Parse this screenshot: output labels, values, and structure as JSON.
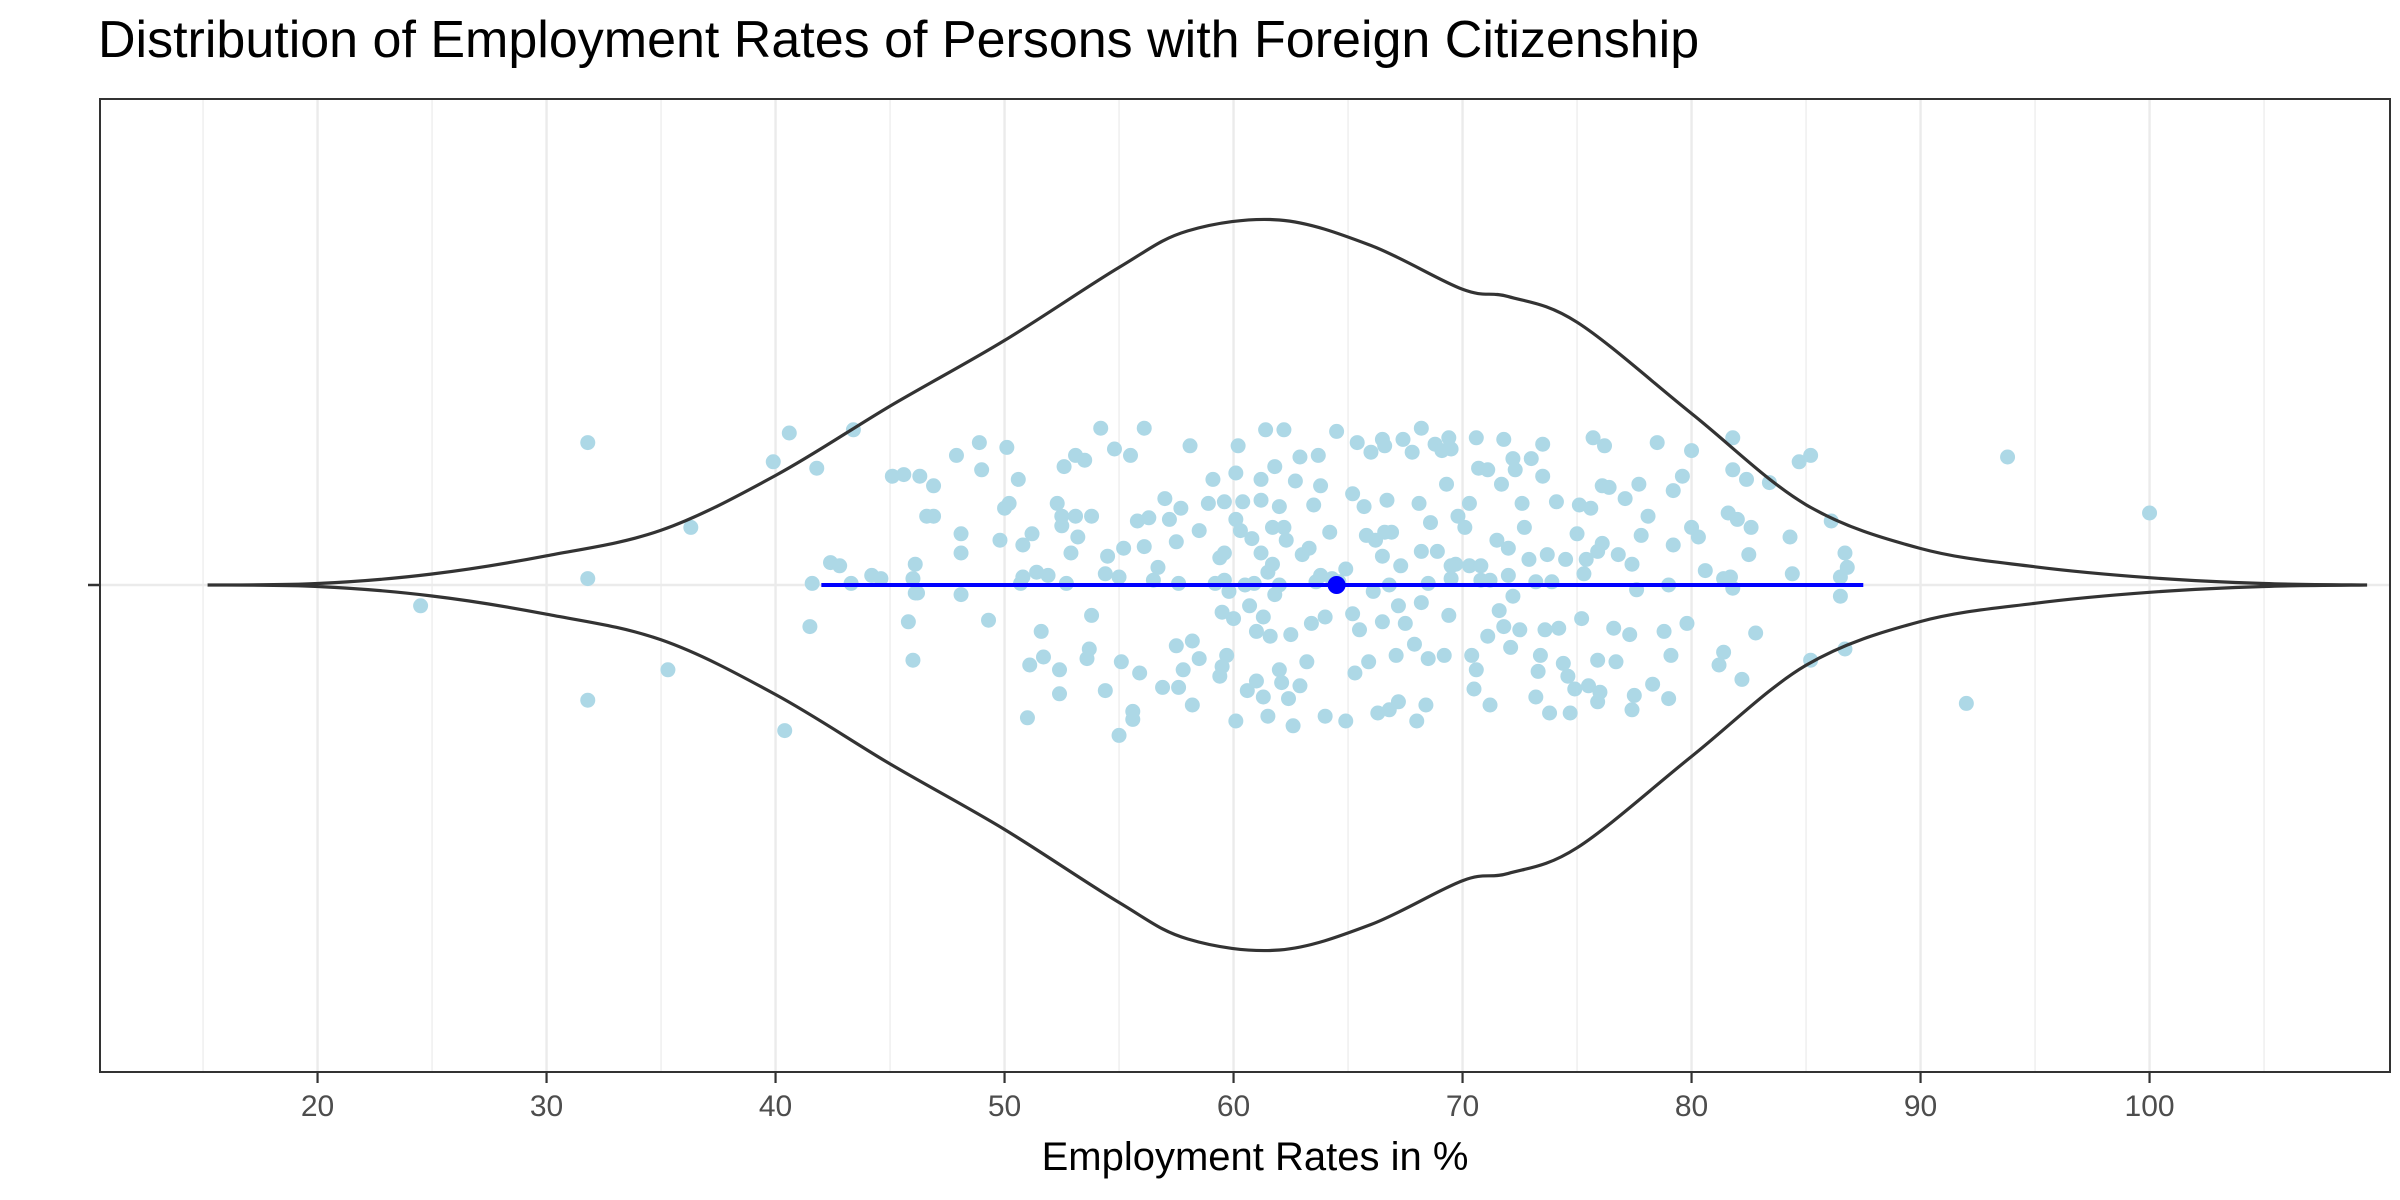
{
  "chart_data": {
    "type": "violin",
    "title": "Distribution of Employment Rates of Persons with Foreign Citizenship",
    "xlabel": "Employment Rates in %",
    "ylabel": "",
    "xlim": [
      10.5,
      110.5
    ],
    "x_ticks": [
      20,
      30,
      40,
      50,
      60,
      70,
      80,
      90,
      100
    ],
    "grid": true,
    "colors": {
      "points": "#add8e6",
      "violin": "#333333",
      "summary": "#0000ff",
      "grid_major": "#ebebeb",
      "panel_border": "#333333"
    },
    "violin_density": {
      "x": [
        15.2,
        20,
        25,
        30,
        35,
        40,
        45,
        50,
        55,
        58,
        62,
        66,
        70,
        72,
        75,
        80,
        85,
        90,
        95,
        100,
        105,
        109.5
      ],
      "half_width": [
        0,
        0.004,
        0.03,
        0.08,
        0.15,
        0.3,
        0.49,
        0.67,
        0.87,
        0.97,
        1.0,
        0.93,
        0.81,
        0.79,
        0.72,
        0.47,
        0.22,
        0.1,
        0.05,
        0.02,
        0.004,
        0
      ]
    },
    "summary": {
      "mean": 64.5,
      "lower": 42,
      "upper": 87.5
    },
    "points": [
      [
        24.5,
        -0.13
      ],
      [
        31.8,
        0.89
      ],
      [
        31.8,
        0.04
      ],
      [
        31.8,
        -0.72
      ],
      [
        35.3,
        -0.53
      ],
      [
        36.3,
        0.36
      ],
      [
        39.9,
        0.77
      ],
      [
        40.4,
        -0.91
      ],
      [
        40.6,
        0.95
      ],
      [
        41.5,
        -0.26
      ],
      [
        41.6,
        0.01
      ],
      [
        41.8,
        0.73
      ],
      [
        42.4,
        0.14
      ],
      [
        42.8,
        0.12
      ],
      [
        43.3,
        0.01
      ],
      [
        43.4,
        0.97
      ],
      [
        44.2,
        0.06
      ],
      [
        44.6,
        0.04
      ],
      [
        45.1,
        0.68
      ],
      [
        45.6,
        0.69
      ],
      [
        45.8,
        -0.23
      ],
      [
        46.0,
        -0.47
      ],
      [
        46.0,
        0.04
      ],
      [
        46.1,
        0.13
      ],
      [
        46.1,
        -0.05
      ],
      [
        46.2,
        -0.05
      ],
      [
        46.3,
        0.68
      ],
      [
        46.6,
        0.43
      ],
      [
        46.9,
        0.43
      ],
      [
        46.9,
        0.62
      ],
      [
        47.9,
        0.81
      ],
      [
        48.1,
        0.32
      ],
      [
        48.1,
        -0.06
      ],
      [
        48.1,
        0.2
      ],
      [
        48.9,
        0.89
      ],
      [
        49.0,
        0.72
      ],
      [
        49.3,
        -0.22
      ],
      [
        49.8,
        0.28
      ],
      [
        50.0,
        0.48
      ],
      [
        50.1,
        0.86
      ],
      [
        50.2,
        0.51
      ],
      [
        50.6,
        0.66
      ],
      [
        50.7,
        0.01
      ],
      [
        50.8,
        0.05
      ],
      [
        50.8,
        0.25
      ],
      [
        51.0,
        -0.83
      ],
      [
        51.1,
        -0.5
      ],
      [
        51.2,
        0.32
      ],
      [
        51.4,
        0.08
      ],
      [
        51.6,
        -0.29
      ],
      [
        51.7,
        -0.45
      ],
      [
        51.9,
        0.06
      ],
      [
        52.3,
        0.51
      ],
      [
        52.4,
        -0.68
      ],
      [
        52.4,
        -0.53
      ],
      [
        52.5,
        0.37
      ],
      [
        52.5,
        0.43
      ],
      [
        52.6,
        0.74
      ],
      [
        52.7,
        0.01
      ],
      [
        52.9,
        0.2
      ],
      [
        53.1,
        0.81
      ],
      [
        53.1,
        0.43
      ],
      [
        53.2,
        0.3
      ],
      [
        53.5,
        0.78
      ],
      [
        53.6,
        -0.46
      ],
      [
        53.7,
        -0.4
      ],
      [
        53.8,
        0.43
      ],
      [
        53.8,
        -0.19
      ],
      [
        54.2,
        0.98
      ],
      [
        54.4,
        0.07
      ],
      [
        54.4,
        -0.66
      ],
      [
        54.5,
        0.18
      ],
      [
        54.8,
        0.85
      ],
      [
        55.0,
        0.05
      ],
      [
        55.0,
        -0.94
      ],
      [
        55.1,
        -0.48
      ],
      [
        55.2,
        0.23
      ],
      [
        55.5,
        0.81
      ],
      [
        55.6,
        -0.84
      ],
      [
        55.6,
        -0.79
      ],
      [
        55.8,
        0.4
      ],
      [
        55.9,
        -0.55
      ],
      [
        56.1,
        0.24
      ],
      [
        56.1,
        0.98
      ],
      [
        56.3,
        0.42
      ],
      [
        56.5,
        0.03
      ],
      [
        56.7,
        0.11
      ],
      [
        56.9,
        -0.64
      ],
      [
        57.0,
        0.54
      ],
      [
        57.2,
        0.41
      ],
      [
        57.5,
        -0.38
      ],
      [
        57.5,
        0.27
      ],
      [
        57.6,
        -0.64
      ],
      [
        57.6,
        0.01
      ],
      [
        57.7,
        0.48
      ],
      [
        57.8,
        -0.53
      ],
      [
        58.1,
        0.87
      ],
      [
        58.2,
        -0.75
      ],
      [
        58.2,
        -0.35
      ],
      [
        58.5,
        0.34
      ],
      [
        58.5,
        -0.46
      ],
      [
        58.9,
        0.51
      ],
      [
        59.1,
        0.66
      ],
      [
        59.2,
        0.01
      ],
      [
        59.4,
        -0.57
      ],
      [
        59.4,
        0.17
      ],
      [
        59.5,
        -0.17
      ],
      [
        59.5,
        -0.51
      ],
      [
        59.6,
        0.52
      ],
      [
        59.6,
        0.2
      ],
      [
        59.6,
        0.03
      ],
      [
        59.7,
        -0.44
      ],
      [
        59.8,
        -0.04
      ],
      [
        60.0,
        -0.21
      ],
      [
        60.1,
        0.41
      ],
      [
        60.1,
        0.7
      ],
      [
        60.1,
        -0.85
      ],
      [
        60.2,
        0.87
      ],
      [
        60.3,
        0.34
      ],
      [
        60.4,
        0.52
      ],
      [
        60.5,
        0.0
      ],
      [
        60.6,
        -0.66
      ],
      [
        60.7,
        -0.13
      ],
      [
        60.8,
        0.29
      ],
      [
        60.9,
        0.01
      ],
      [
        61.0,
        -0.6
      ],
      [
        61.0,
        -0.29
      ],
      [
        61.2,
        0.66
      ],
      [
        61.2,
        0.53
      ],
      [
        61.2,
        0.2
      ],
      [
        61.3,
        -0.2
      ],
      [
        61.3,
        -0.7
      ],
      [
        61.4,
        0.97
      ],
      [
        61.5,
        -0.82
      ],
      [
        61.5,
        0.08
      ],
      [
        61.6,
        -0.32
      ],
      [
        61.7,
        0.13
      ],
      [
        61.7,
        0.36
      ],
      [
        61.8,
        0.74
      ],
      [
        61.8,
        -0.06
      ],
      [
        62.0,
        0.0
      ],
      [
        62.0,
        0.49
      ],
      [
        62.0,
        -0.53
      ],
      [
        62.1,
        -0.61
      ],
      [
        62.2,
        0.97
      ],
      [
        62.2,
        0.36
      ],
      [
        62.3,
        0.28
      ],
      [
        62.4,
        -0.71
      ],
      [
        62.5,
        -0.31
      ],
      [
        62.6,
        -0.88
      ],
      [
        62.7,
        0.65
      ],
      [
        62.9,
        0.8
      ],
      [
        62.9,
        -0.63
      ],
      [
        63.0,
        0.19
      ],
      [
        63.2,
        -0.48
      ],
      [
        63.3,
        0.23
      ],
      [
        63.4,
        -0.24
      ],
      [
        63.5,
        0.5
      ],
      [
        63.6,
        0.02
      ],
      [
        63.7,
        0.81
      ],
      [
        63.8,
        0.06
      ],
      [
        63.8,
        0.62
      ],
      [
        64.0,
        -0.2
      ],
      [
        64.0,
        -0.82
      ],
      [
        64.2,
        0.33
      ],
      [
        64.3,
        0.04
      ],
      [
        64.5,
        0.96
      ],
      [
        64.6,
        0.02
      ],
      [
        64.9,
        0.1
      ],
      [
        64.9,
        -0.85
      ],
      [
        65.2,
        -0.18
      ],
      [
        65.2,
        0.57
      ],
      [
        65.3,
        -0.55
      ],
      [
        65.4,
        0.89
      ],
      [
        65.5,
        -0.28
      ],
      [
        65.7,
        0.49
      ],
      [
        65.8,
        0.31
      ],
      [
        65.9,
        -0.48
      ],
      [
        66.0,
        0.83
      ],
      [
        66.1,
        -0.04
      ],
      [
        66.2,
        0.28
      ],
      [
        66.3,
        -0.8
      ],
      [
        66.5,
        -0.23
      ],
      [
        66.5,
        0.18
      ],
      [
        66.5,
        0.91
      ],
      [
        66.6,
        0.33
      ],
      [
        66.6,
        0.87
      ],
      [
        66.7,
        0.53
      ],
      [
        66.8,
        -0.78
      ],
      [
        66.8,
        0.0
      ],
      [
        66.9,
        0.33
      ],
      [
        67.1,
        -0.44
      ],
      [
        67.2,
        -0.73
      ],
      [
        67.2,
        -0.13
      ],
      [
        67.3,
        0.12
      ],
      [
        67.4,
        0.91
      ],
      [
        67.5,
        -0.24
      ],
      [
        67.8,
        0.83
      ],
      [
        67.9,
        -0.37
      ],
      [
        68.0,
        -0.85
      ],
      [
        68.1,
        0.51
      ],
      [
        68.2,
        0.98
      ],
      [
        68.2,
        -0.11
      ],
      [
        68.2,
        0.21
      ],
      [
        68.4,
        -0.75
      ],
      [
        68.5,
        0.01
      ],
      [
        68.5,
        -0.46
      ],
      [
        68.6,
        0.39
      ],
      [
        68.8,
        0.88
      ],
      [
        68.9,
        0.21
      ],
      [
        69.1,
        0.84
      ],
      [
        69.2,
        -0.44
      ],
      [
        69.3,
        0.63
      ],
      [
        69.4,
        -0.19
      ],
      [
        69.4,
        0.92
      ],
      [
        69.5,
        0.12
      ],
      [
        69.5,
        0.85
      ],
      [
        69.5,
        0.04
      ],
      [
        69.7,
        0.13
      ],
      [
        69.8,
        0.43
      ],
      [
        70.1,
        0.36
      ],
      [
        70.3,
        0.12
      ],
      [
        70.3,
        0.51
      ],
      [
        70.4,
        -0.44
      ],
      [
        70.5,
        -0.65
      ],
      [
        70.6,
        -0.53
      ],
      [
        70.6,
        0.92
      ],
      [
        70.7,
        0.73
      ],
      [
        70.8,
        0.12
      ],
      [
        70.8,
        0.03
      ],
      [
        71.1,
        0.72
      ],
      [
        71.1,
        -0.32
      ],
      [
        71.2,
        -0.75
      ],
      [
        71.2,
        0.03
      ],
      [
        71.5,
        0.28
      ],
      [
        71.6,
        -0.16
      ],
      [
        71.7,
        0.63
      ],
      [
        71.8,
        -0.26
      ],
      [
        71.8,
        0.91
      ],
      [
        72.0,
        0.06
      ],
      [
        72.0,
        0.23
      ],
      [
        72.1,
        -0.39
      ],
      [
        72.2,
        -0.07
      ],
      [
        72.2,
        0.79
      ],
      [
        72.3,
        0.72
      ],
      [
        72.5,
        -0.28
      ],
      [
        72.6,
        0.51
      ],
      [
        72.7,
        0.36
      ],
      [
        72.9,
        0.16
      ],
      [
        73.0,
        0.79
      ],
      [
        73.2,
        0.02
      ],
      [
        73.2,
        -0.7
      ],
      [
        73.3,
        -0.54
      ],
      [
        73.4,
        -0.44
      ],
      [
        73.5,
        0.68
      ],
      [
        73.5,
        0.88
      ],
      [
        73.6,
        -0.28
      ],
      [
        73.7,
        0.19
      ],
      [
        73.8,
        -0.8
      ],
      [
        73.9,
        0.02
      ],
      [
        74.1,
        0.52
      ],
      [
        74.2,
        -0.27
      ],
      [
        74.4,
        -0.49
      ],
      [
        74.5,
        0.16
      ],
      [
        74.6,
        -0.57
      ],
      [
        74.7,
        -0.8
      ],
      [
        74.9,
        -0.65
      ],
      [
        75.0,
        0.32
      ],
      [
        75.1,
        0.5
      ],
      [
        75.2,
        -0.21
      ],
      [
        75.3,
        0.07
      ],
      [
        75.4,
        0.16
      ],
      [
        75.5,
        -0.63
      ],
      [
        75.6,
        0.48
      ],
      [
        75.7,
        0.92
      ],
      [
        75.9,
        0.21
      ],
      [
        75.9,
        -0.47
      ],
      [
        75.9,
        -0.73
      ],
      [
        76.0,
        -0.67
      ],
      [
        76.1,
        0.62
      ],
      [
        76.1,
        0.26
      ],
      [
        76.2,
        0.87
      ],
      [
        76.4,
        0.61
      ],
      [
        76.6,
        -0.27
      ],
      [
        76.7,
        -0.48
      ],
      [
        76.8,
        0.19
      ],
      [
        77.1,
        0.54
      ],
      [
        77.3,
        -0.31
      ],
      [
        77.4,
        -0.78
      ],
      [
        77.4,
        0.13
      ],
      [
        77.5,
        -0.69
      ],
      [
        77.6,
        -0.03
      ],
      [
        77.7,
        0.63
      ],
      [
        77.8,
        0.31
      ],
      [
        78.1,
        0.43
      ],
      [
        78.3,
        -0.62
      ],
      [
        78.5,
        0.89
      ],
      [
        78.8,
        -0.29
      ],
      [
        79.0,
        0.0
      ],
      [
        79.0,
        -0.71
      ],
      [
        79.1,
        -0.44
      ],
      [
        79.2,
        0.59
      ],
      [
        79.2,
        0.25
      ],
      [
        79.6,
        0.68
      ],
      [
        79.8,
        -0.24
      ],
      [
        80.0,
        0.36
      ],
      [
        80.0,
        0.84
      ],
      [
        80.3,
        0.3
      ],
      [
        80.6,
        0.09
      ],
      [
        81.2,
        -0.5
      ],
      [
        81.4,
        -0.42
      ],
      [
        81.4,
        0.04
      ],
      [
        81.6,
        0.45
      ],
      [
        81.7,
        0.05
      ],
      [
        81.8,
        0.72
      ],
      [
        81.8,
        0.92
      ],
      [
        81.8,
        -0.02
      ],
      [
        82.0,
        0.41
      ],
      [
        82.2,
        -0.59
      ],
      [
        82.4,
        0.66
      ],
      [
        82.5,
        0.19
      ],
      [
        82.6,
        0.36
      ],
      [
        82.8,
        -0.3
      ],
      [
        83.4,
        0.64
      ],
      [
        84.3,
        0.3
      ],
      [
        84.4,
        0.07
      ],
      [
        84.7,
        0.77
      ],
      [
        85.2,
        0.81
      ],
      [
        85.2,
        -0.47
      ],
      [
        86.1,
        0.4
      ],
      [
        86.5,
        0.05
      ],
      [
        86.5,
        -0.07
      ],
      [
        86.7,
        0.2
      ],
      [
        86.7,
        -0.4
      ],
      [
        86.8,
        0.11
      ],
      [
        92.0,
        -0.74
      ],
      [
        93.8,
        0.8
      ],
      [
        100.0,
        0.45
      ]
    ]
  }
}
